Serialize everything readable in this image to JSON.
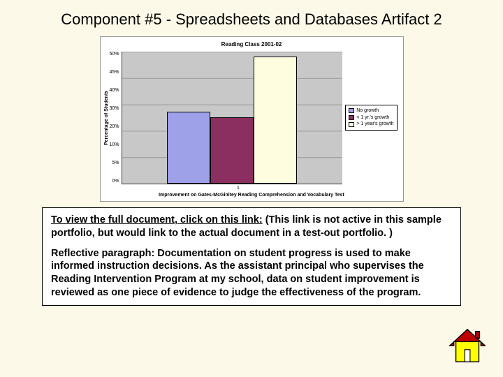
{
  "title": "Component #5 - Spreadsheets and Databases Artifact 2",
  "chart": {
    "title": "Reading Class 2001-02",
    "y_axis_label": "Percentage of Students",
    "x_axis_label": "Improvement on Gates-McGinitey Reading Comprehension and Vocabulary Test",
    "x_tick": "1",
    "ylim": [
      0,
      50
    ],
    "yticks": [
      "50%",
      "45%",
      "40%",
      "30%",
      "20%",
      "10%",
      "5%",
      "0%"
    ],
    "plot_bg": "#c8c8c8",
    "bars": [
      {
        "value": 27,
        "color": "#9ea0e8",
        "label": "No growth"
      },
      {
        "value": 25,
        "color": "#8a2f5f",
        "label": "< 1 yr.'s growth"
      },
      {
        "value": 48,
        "color": "#fffde0",
        "label": "> 1 year's growth"
      }
    ],
    "legend_items": [
      {
        "swatch": "#9ea0e8",
        "text": "No growth"
      },
      {
        "swatch": "#8a2f5f",
        "text": "< 1 yr.'s growth"
      },
      {
        "swatch": "#fffde0",
        "text": "> 1 year's growth"
      }
    ]
  },
  "textbox": {
    "link_text": "To view the full document, click on this link:",
    "link_note": "(This link is not active in this sample portfolio, but would link to the actual document in a test-out portfolio. )",
    "reflective": "Reflective paragraph: Documentation on student progress is used to make informed instruction decisions.  As the assistant principal who supervises the Reading Intervention Program at my school, data on student improvement is reviewed as one piece of evidence to judge the effectiveness of the program."
  },
  "home_icon": {
    "roof_color": "#c00000",
    "wall_color": "#ffff00",
    "outline": "#000000"
  }
}
